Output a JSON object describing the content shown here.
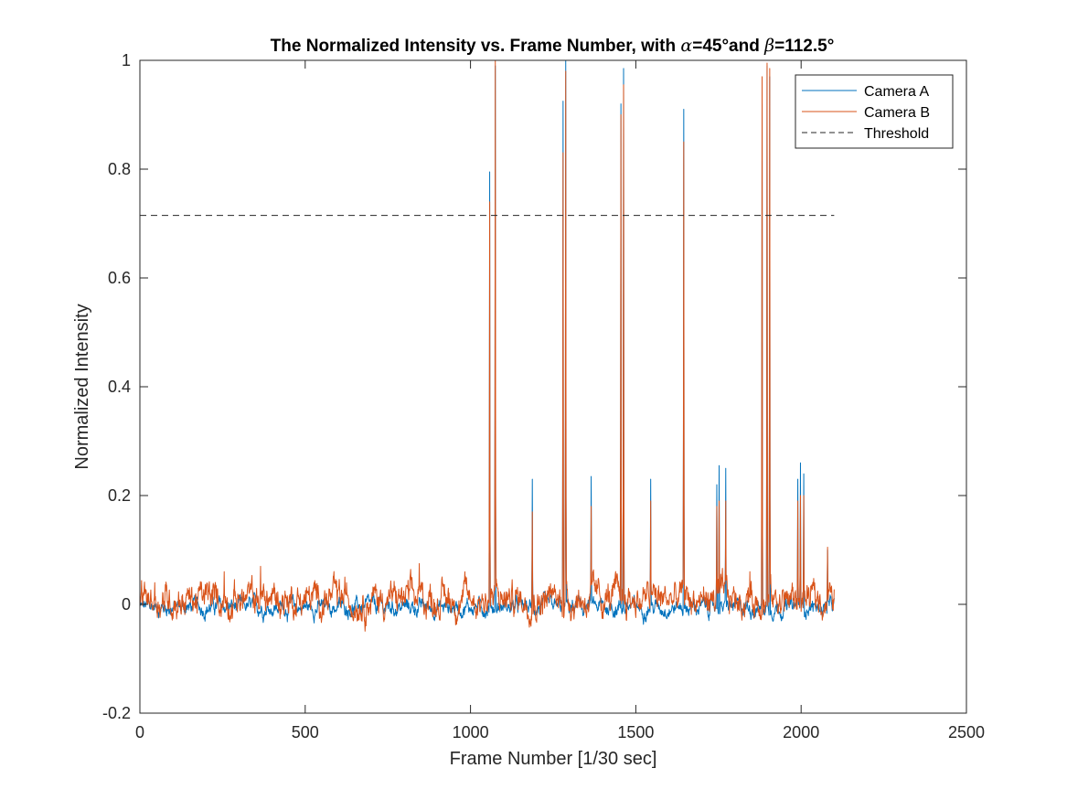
{
  "chart_data": {
    "type": "line",
    "title": {
      "prefix": "The Normalized Intensity vs. Frame Number, with ",
      "alpha_symbol": "α",
      "alpha_value": "=45°and ",
      "beta_symbol": "β",
      "beta_value": "=112.5°"
    },
    "xlabel": "Frame Number [1/30 sec]",
    "ylabel": "Normalized Intensity",
    "xlim": [
      0,
      2500
    ],
    "ylim": [
      -0.2,
      1
    ],
    "xticks": [
      0,
      500,
      1000,
      1500,
      2000,
      2500
    ],
    "xtick_labels": [
      "0",
      "500",
      "1000",
      "1500",
      "2000",
      "2500"
    ],
    "yticks": [
      -0.2,
      0,
      0.2,
      0.4,
      0.6,
      0.8,
      1
    ],
    "ytick_labels": [
      "-0.2",
      "0",
      "0.2",
      "0.4",
      "0.6",
      "0.8",
      "1"
    ],
    "grid": false,
    "legend_position": "top-right",
    "frame_count": 2100,
    "series": [
      {
        "name": "Camera A",
        "color": "#0072BD",
        "baseline": -0.005,
        "noise": 0.01,
        "peaks": [
          {
            "x": 1058,
            "y": 0.795
          },
          {
            "x": 1075,
            "y": 0.99
          },
          {
            "x": 1187,
            "y": 0.23
          },
          {
            "x": 1280,
            "y": 0.925
          },
          {
            "x": 1288,
            "y": 1.0
          },
          {
            "x": 1365,
            "y": 0.235
          },
          {
            "x": 1455,
            "y": 0.92
          },
          {
            "x": 1463,
            "y": 0.985
          },
          {
            "x": 1545,
            "y": 0.23
          },
          {
            "x": 1645,
            "y": 0.91
          },
          {
            "x": 1745,
            "y": 0.22
          },
          {
            "x": 1752,
            "y": 0.255
          },
          {
            "x": 1772,
            "y": 0.25
          },
          {
            "x": 1882,
            "y": 0.92
          },
          {
            "x": 1897,
            "y": 0.99
          },
          {
            "x": 1905,
            "y": 0.97
          },
          {
            "x": 1990,
            "y": 0.23
          },
          {
            "x": 1998,
            "y": 0.26
          },
          {
            "x": 2008,
            "y": 0.24
          },
          {
            "x": 2080,
            "y": 0.1
          }
        ]
      },
      {
        "name": "Camera B",
        "color": "#D95319",
        "baseline": 0.01,
        "noise": 0.02,
        "peaks": [
          {
            "x": 45,
            "y": 0.04
          },
          {
            "x": 255,
            "y": 0.06
          },
          {
            "x": 365,
            "y": 0.07
          },
          {
            "x": 845,
            "y": 0.075
          },
          {
            "x": 1058,
            "y": 0.74
          },
          {
            "x": 1075,
            "y": 1.0
          },
          {
            "x": 1187,
            "y": 0.17
          },
          {
            "x": 1280,
            "y": 0.83
          },
          {
            "x": 1288,
            "y": 0.98
          },
          {
            "x": 1365,
            "y": 0.18
          },
          {
            "x": 1455,
            "y": 0.9
          },
          {
            "x": 1463,
            "y": 0.955
          },
          {
            "x": 1545,
            "y": 0.19
          },
          {
            "x": 1645,
            "y": 0.85
          },
          {
            "x": 1745,
            "y": 0.18
          },
          {
            "x": 1752,
            "y": 0.19
          },
          {
            "x": 1772,
            "y": 0.19
          },
          {
            "x": 1845,
            "y": 0.06
          },
          {
            "x": 1882,
            "y": 0.97
          },
          {
            "x": 1897,
            "y": 0.995
          },
          {
            "x": 1905,
            "y": 0.985
          },
          {
            "x": 1990,
            "y": 0.19
          },
          {
            "x": 1998,
            "y": 0.2
          },
          {
            "x": 2008,
            "y": 0.2
          },
          {
            "x": 2080,
            "y": 0.105
          }
        ]
      }
    ],
    "threshold": {
      "name": "Threshold",
      "y": 0.715,
      "x_range": [
        0,
        2100
      ],
      "color": "#262626",
      "style": "dashed"
    }
  }
}
